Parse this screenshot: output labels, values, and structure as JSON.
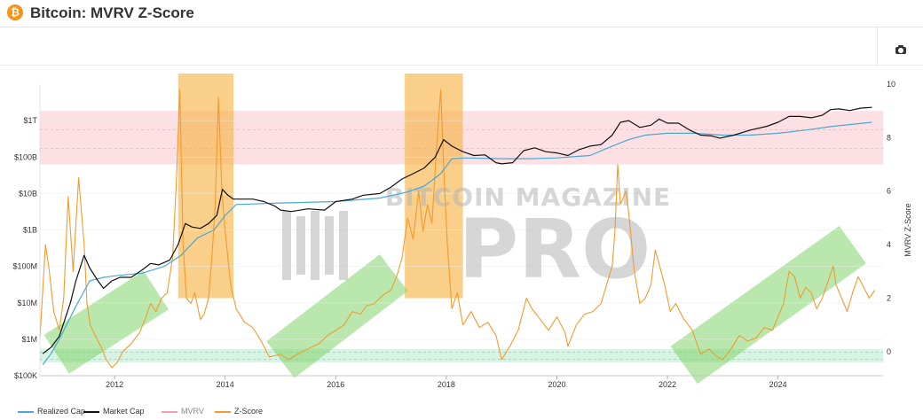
{
  "header": {
    "title": "Bitcoin: MVRV Z-Score",
    "logo_glyph": "₿",
    "camera_icon": "camera-icon"
  },
  "watermark": {
    "line1": "BITCOIN MAGAZINE",
    "line2": "PRO"
  },
  "colors": {
    "realized": "#4aa8d8",
    "market": "#111111",
    "mvrv": "#f4a0ad",
    "zscore": "#f39a2d",
    "red_band": "#fde0e3",
    "green_band": "#d7f3e4",
    "top_box": "#f7b54a",
    "trend_box": "#7fd36a"
  },
  "legend": [
    {
      "key": "realized",
      "label": "Realized Cap",
      "muted": false
    },
    {
      "key": "market",
      "label": "Market Cap",
      "muted": false
    },
    {
      "key": "mvrv",
      "label": "MVRV",
      "muted": true
    },
    {
      "key": "zscore",
      "label": "Z-Score",
      "muted": false
    }
  ],
  "chart_data": {
    "type": "line",
    "title": "Bitcoin: MVRV Z-Score",
    "x_range": [
      2010.65,
      2025.9
    ],
    "x_ticks": [
      2012,
      2014,
      2016,
      2018,
      2020,
      2022,
      2024
    ],
    "x_tick_labels": [
      "2012",
      "2014",
      "2016",
      "2018",
      "2020",
      "2022",
      "2024"
    ],
    "y_left": {
      "scale": "log",
      "range": [
        100000,
        10000000000000
      ],
      "ticks": [
        100000,
        1000000,
        10000000,
        100000000,
        1000000000,
        10000000000,
        100000000000,
        1000000000000
      ],
      "tick_labels": [
        "$100K",
        "$1M",
        "$10M",
        "$100M",
        "$1B",
        "$10B",
        "$100B",
        "$1T"
      ]
    },
    "y_right": {
      "label": "MVRV Z-Score",
      "range": [
        -0.9,
        10
      ],
      "ticks": [
        0,
        2,
        4,
        6,
        8,
        10
      ],
      "tick_labels": [
        "0",
        "2",
        "4",
        "6",
        "8",
        "10"
      ]
    },
    "zones": {
      "red": [
        7,
        9
      ],
      "green": [
        -0.4,
        0.1
      ]
    },
    "highlight_boxes_year": [
      [
        2013.15,
        2014.15
      ],
      [
        2017.25,
        2018.3
      ]
    ],
    "trend_boxes": [
      {
        "from": [
          2010.95,
          -0.1
        ],
        "to": [
          2012.75,
          2.3
        ]
      },
      {
        "from": [
          2015.0,
          -0.3
        ],
        "to": [
          2017.05,
          2.95
        ]
      },
      {
        "from": [
          2022.3,
          -0.5
        ],
        "to": [
          2025.35,
          4.0
        ]
      }
    ],
    "series": [
      {
        "name": "Market Cap",
        "x": [
          2010.7,
          2010.85,
          2011.0,
          2011.2,
          2011.3,
          2011.45,
          2011.55,
          2011.7,
          2011.8,
          2011.95,
          2012.1,
          2012.3,
          2012.5,
          2012.65,
          2012.8,
          2013.0,
          2013.15,
          2013.28,
          2013.4,
          2013.55,
          2013.7,
          2013.85,
          2013.95,
          2014.05,
          2014.15,
          2014.3,
          2014.5,
          2014.7,
          2014.9,
          2015.0,
          2015.2,
          2015.5,
          2015.8,
          2016.0,
          2016.3,
          2016.5,
          2016.8,
          2017.0,
          2017.2,
          2017.4,
          2017.6,
          2017.8,
          2017.95,
          2018.1,
          2018.3,
          2018.5,
          2018.7,
          2018.9,
          2019.0,
          2019.2,
          2019.4,
          2019.6,
          2019.8,
          2020.0,
          2020.2,
          2020.4,
          2020.6,
          2020.8,
          2021.0,
          2021.15,
          2021.3,
          2021.5,
          2021.7,
          2021.85,
          2022.0,
          2022.2,
          2022.4,
          2022.6,
          2022.8,
          2022.95,
          2023.2,
          2023.5,
          2023.8,
          2024.0,
          2024.2,
          2024.4,
          2024.6,
          2024.8,
          2024.95,
          2025.1,
          2025.3,
          2025.5,
          2025.7
        ],
        "y": [
          400000,
          600000,
          1200000,
          10000000,
          40000000,
          200000000,
          90000000,
          40000000,
          25000000,
          40000000,
          50000000,
          50000000,
          80000000,
          120000000,
          110000000,
          150000000,
          400000000,
          1500000000,
          1200000000,
          1100000000,
          1500000000,
          2500000000,
          13000000000,
          9000000000,
          7000000000,
          7000000000,
          7000000000,
          6000000000,
          4500000000,
          3500000000,
          3200000000,
          3800000000,
          3500000000,
          6000000000,
          7000000000,
          9000000000,
          10000000000,
          15000000000,
          25000000000,
          35000000000,
          50000000000,
          100000000000,
          300000000000,
          200000000000,
          140000000000,
          110000000000,
          115000000000,
          70000000000,
          65000000000,
          70000000000,
          150000000000,
          180000000000,
          140000000000,
          130000000000,
          110000000000,
          160000000000,
          200000000000,
          220000000000,
          400000000000,
          900000000000,
          1000000000000,
          650000000000,
          750000000000,
          1100000000000,
          850000000000,
          850000000000,
          550000000000,
          400000000000,
          380000000000,
          330000000000,
          400000000000,
          550000000000,
          700000000000,
          900000000000,
          1300000000000,
          1300000000000,
          1200000000000,
          1400000000000,
          2000000000000,
          2100000000000,
          1900000000000,
          2200000000000,
          2300000000000
        ]
      },
      {
        "name": "Realized Cap",
        "x": [
          2010.7,
          2010.85,
          2011.0,
          2011.3,
          2011.55,
          2011.8,
          2012.0,
          2012.5,
          2012.9,
          2013.2,
          2013.5,
          2013.8,
          2014.0,
          2014.2,
          2015.0,
          2016.0,
          2016.8,
          2017.3,
          2017.6,
          2017.9,
          2018.1,
          2018.3,
          2019.0,
          2019.5,
          2020.0,
          2020.6,
          2021.0,
          2021.3,
          2021.6,
          2022.0,
          2022.5,
          2023.0,
          2023.5,
          2024.0,
          2024.5,
          2025.0,
          2025.7
        ],
        "y": [
          200000,
          400000,
          1000000,
          8000000,
          40000000,
          50000000,
          55000000,
          65000000,
          100000000,
          200000000,
          600000000,
          1000000000,
          2500000000,
          5000000000,
          5500000000,
          6000000000,
          7500000000,
          11000000000,
          16000000000,
          35000000000,
          90000000000,
          95000000000,
          90000000000,
          90000000000,
          95000000000,
          110000000000,
          200000000000,
          300000000000,
          400000000000,
          450000000000,
          450000000000,
          400000000000,
          400000000000,
          450000000000,
          550000000000,
          700000000000,
          900000000000
        ]
      },
      {
        "name": "Z-Score",
        "x": [
          2010.65,
          2010.75,
          2010.82,
          2010.9,
          2011.0,
          2011.08,
          2011.16,
          2011.25,
          2011.35,
          2011.45,
          2011.5,
          2011.56,
          2011.65,
          2011.75,
          2011.85,
          2011.95,
          2012.05,
          2012.15,
          2012.3,
          2012.45,
          2012.55,
          2012.65,
          2012.75,
          2012.85,
          2012.95,
          2013.05,
          2013.12,
          2013.18,
          2013.24,
          2013.3,
          2013.38,
          2013.45,
          2013.55,
          2013.62,
          2013.7,
          2013.76,
          2013.82,
          2013.88,
          2013.94,
          2014.0,
          2014.1,
          2014.2,
          2014.35,
          2014.5,
          2014.65,
          2014.8,
          2015.0,
          2015.15,
          2015.3,
          2015.5,
          2015.7,
          2015.85,
          2016.0,
          2016.15,
          2016.3,
          2016.45,
          2016.55,
          2016.7,
          2016.85,
          2017.0,
          2017.1,
          2017.2,
          2017.3,
          2017.4,
          2017.5,
          2017.58,
          2017.66,
          2017.74,
          2017.82,
          2017.9,
          2017.96,
          2018.02,
          2018.1,
          2018.2,
          2018.3,
          2018.45,
          2018.6,
          2018.75,
          2018.9,
          2019.0,
          2019.15,
          2019.3,
          2019.45,
          2019.55,
          2019.7,
          2019.85,
          2020.0,
          2020.15,
          2020.2,
          2020.35,
          2020.5,
          2020.65,
          2020.8,
          2020.9,
          2021.0,
          2021.05,
          2021.1,
          2021.15,
          2021.25,
          2021.3,
          2021.4,
          2021.5,
          2021.6,
          2021.7,
          2021.78,
          2021.86,
          2021.95,
          2022.05,
          2022.15,
          2022.3,
          2022.45,
          2022.6,
          2022.75,
          2022.9,
          2023.0,
          2023.15,
          2023.3,
          2023.45,
          2023.6,
          2023.75,
          2023.9,
          2024.0,
          2024.1,
          2024.2,
          2024.3,
          2024.4,
          2024.5,
          2024.6,
          2024.7,
          2024.8,
          2024.9,
          2025.0,
          2025.05,
          2025.15,
          2025.25,
          2025.35,
          2025.45,
          2025.55,
          2025.65,
          2025.75
        ],
        "y": [
          0.5,
          4.0,
          3.0,
          1.5,
          0.8,
          2.0,
          5.8,
          3.0,
          6.5,
          4.0,
          1.8,
          1.0,
          0.6,
          0.2,
          -0.3,
          -0.6,
          -0.4,
          0.0,
          0.3,
          0.7,
          1.2,
          1.8,
          1.5,
          2.0,
          2.2,
          3.5,
          6.5,
          9.8,
          4.0,
          2.0,
          1.8,
          2.2,
          1.2,
          1.4,
          2.0,
          3.5,
          5.5,
          9.5,
          6.0,
          4.5,
          2.5,
          1.6,
          1.1,
          0.9,
          0.4,
          -0.2,
          -0.1,
          -0.3,
          -0.1,
          0.1,
          0.3,
          0.6,
          0.8,
          1.0,
          1.5,
          1.4,
          1.7,
          1.8,
          2.1,
          2.3,
          2.8,
          3.5,
          5.0,
          4.2,
          6.0,
          4.5,
          5.5,
          4.8,
          7.5,
          9.8,
          6.5,
          4.0,
          1.6,
          2.2,
          1.0,
          1.5,
          0.9,
          1.1,
          0.6,
          -0.3,
          0.2,
          0.8,
          2.0,
          1.6,
          1.2,
          0.8,
          1.3,
          0.7,
          0.2,
          1.0,
          1.4,
          1.5,
          1.8,
          2.5,
          3.2,
          4.5,
          7.0,
          5.5,
          6.0,
          5.2,
          3.0,
          1.8,
          2.0,
          2.5,
          3.8,
          3.2,
          2.5,
          1.5,
          1.8,
          1.2,
          0.8,
          -0.1,
          0.1,
          -0.2,
          -0.3,
          0.1,
          0.6,
          0.4,
          0.5,
          0.9,
          0.8,
          1.3,
          1.8,
          3.0,
          2.8,
          2.0,
          2.4,
          2.2,
          1.6,
          2.0,
          2.6,
          3.2,
          2.5,
          2.0,
          1.5,
          2.2,
          2.8,
          2.4,
          2.0,
          2.3
        ]
      }
    ]
  }
}
